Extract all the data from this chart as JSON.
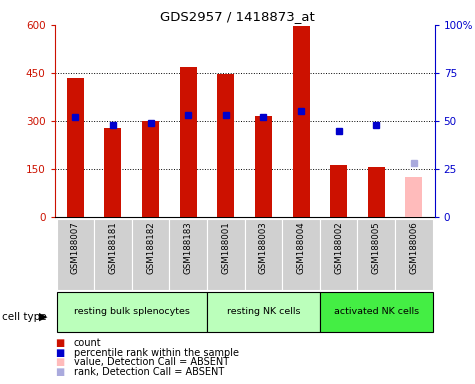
{
  "title": "GDS2957 / 1418873_at",
  "samples": [
    "GSM188007",
    "GSM188181",
    "GSM188182",
    "GSM188183",
    "GSM188001",
    "GSM188003",
    "GSM188004",
    "GSM188002",
    "GSM188005",
    "GSM188006"
  ],
  "count_values": [
    435,
    278,
    300,
    468,
    448,
    315,
    596,
    162,
    155,
    null
  ],
  "rank_values": [
    52,
    48,
    49,
    53,
    53,
    52,
    55,
    45,
    48,
    null
  ],
  "count_absent": [
    null,
    null,
    null,
    null,
    null,
    null,
    null,
    null,
    null,
    125
  ],
  "rank_absent": [
    null,
    null,
    null,
    null,
    null,
    null,
    null,
    null,
    null,
    28
  ],
  "cell_types": [
    {
      "label": "resting bulk splenocytes",
      "start": 0,
      "end": 4,
      "color": "#bbffbb"
    },
    {
      "label": "resting NK cells",
      "start": 4,
      "end": 7,
      "color": "#bbffbb"
    },
    {
      "label": "activated NK cells",
      "start": 7,
      "end": 10,
      "color": "#44ee44"
    }
  ],
  "ylim_left": [
    0,
    600
  ],
  "ylim_right": [
    0,
    100
  ],
  "yticks_left": [
    0,
    150,
    300,
    450,
    600
  ],
  "yticks_right": [
    0,
    25,
    50,
    75,
    100
  ],
  "count_color": "#cc1100",
  "rank_color": "#0000cc",
  "count_absent_color": "#ffbbbb",
  "rank_absent_color": "#aaaadd",
  "bg_sample_color": "#d0d0d0",
  "ylabel_left_color": "#cc1100",
  "ylabel_right_color": "#0000cc"
}
